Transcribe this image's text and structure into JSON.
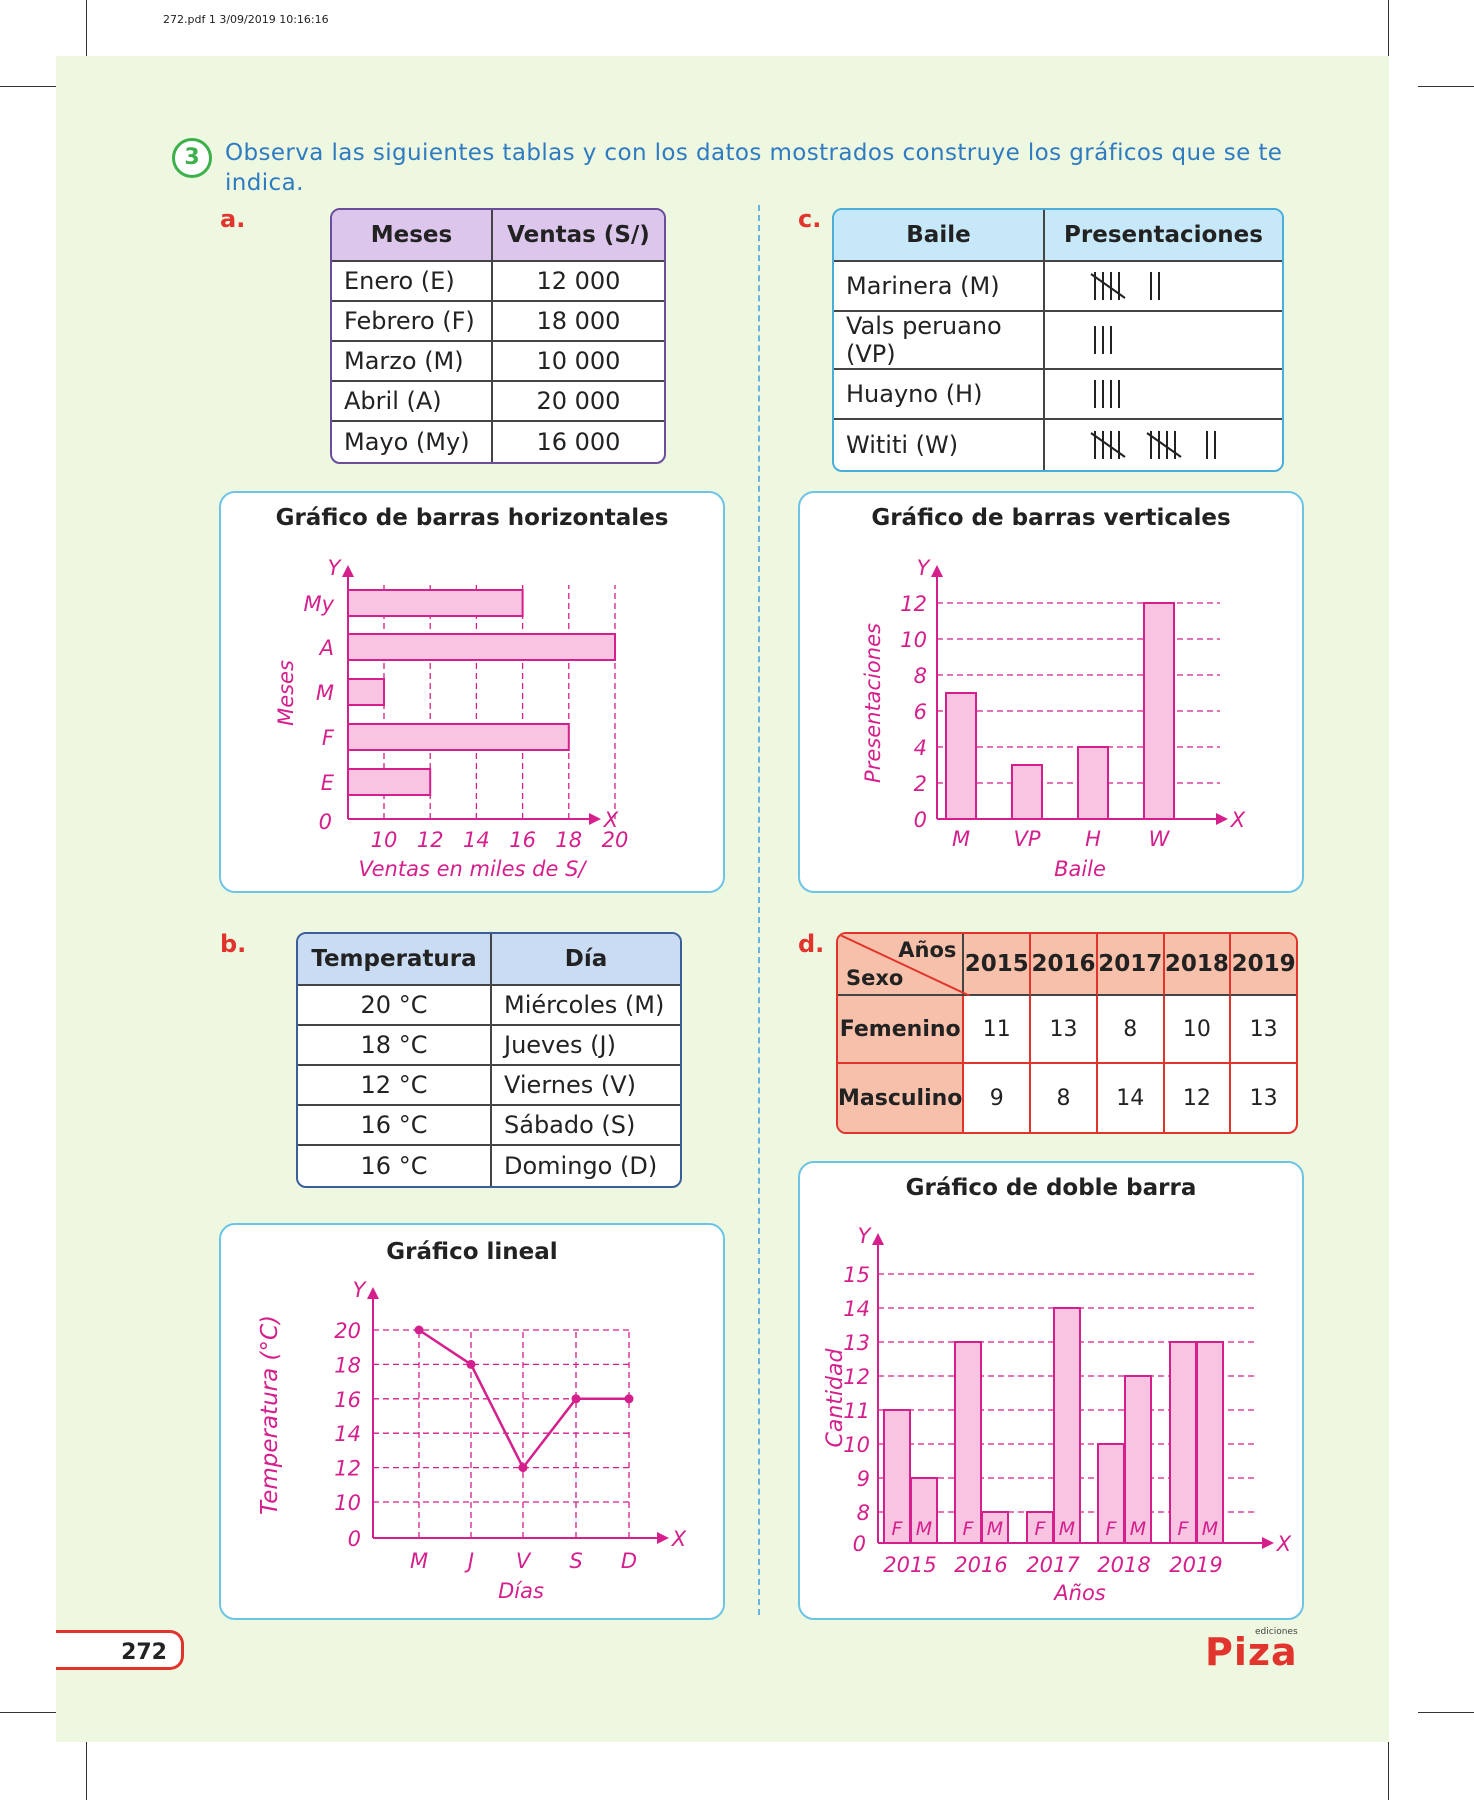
{
  "file_header": "272.pdf   1   3/09/2019   10:16:16",
  "exercise": {
    "number": "3",
    "instruction": "Observa las siguientes tablas y con los datos mostrados construye los gráficos que se te indica."
  },
  "letters": {
    "a": "a.",
    "b": "b.",
    "c": "c.",
    "d": "d."
  },
  "table_a": {
    "headers": [
      "Meses",
      "Ventas (S/)"
    ],
    "rows": [
      [
        "Enero (E)",
        "12 000"
      ],
      [
        "Febrero (F)",
        "18 000"
      ],
      [
        "Marzo (M)",
        "10 000"
      ],
      [
        "Abril (A)",
        "20 000"
      ],
      [
        "Mayo (My)",
        "16 000"
      ]
    ],
    "header_color": "#dcc6ec",
    "border_color": "#6a4e9c"
  },
  "table_b": {
    "headers": [
      "Temperatura",
      "Día"
    ],
    "rows": [
      [
        "20 °C",
        "Miércoles (M)"
      ],
      [
        "18 °C",
        "Jueves (J)"
      ],
      [
        "12 °C",
        "Viernes (V)"
      ],
      [
        "16 °C",
        "Sábado (S)"
      ],
      [
        "16 °C",
        "Domingo (D)"
      ]
    ],
    "header_color": "#c9dcf4",
    "border_color": "#3a5e9c"
  },
  "table_c": {
    "headers": [
      "Baile",
      "Presentaciones"
    ],
    "rows": [
      [
        "Marinera (M)",
        7
      ],
      [
        "Vals peruano (VP)",
        3
      ],
      [
        "Huayno (H)",
        4
      ],
      [
        "Wititi (W)",
        12
      ]
    ],
    "header_color": "#c7e8f8",
    "border_color": "#4aaedc"
  },
  "table_d": {
    "corner_top": "Años",
    "corner_bottom": "Sexo",
    "years": [
      "2015",
      "2016",
      "2017",
      "2018",
      "2019"
    ],
    "rows": [
      {
        "label": "Femenino",
        "values": [
          "11",
          "13",
          "8",
          "10",
          "13"
        ]
      },
      {
        "label": "Masculino",
        "values": [
          "9",
          "8",
          "14",
          "12",
          "13"
        ]
      }
    ],
    "header_color": "#f7c0aa",
    "border_color": "#e0342c"
  },
  "chart_data": [
    {
      "type": "bar",
      "orientation": "horizontal",
      "title": "Gráfico de barras horizontales",
      "xlabel": "Ventas en miles de S/",
      "ylabel": "Meses",
      "x_axis_name": "X",
      "y_axis_name": "Y",
      "categories": [
        "E",
        "F",
        "M",
        "A",
        "My"
      ],
      "values": [
        12,
        18,
        10,
        20,
        16
      ],
      "x_ticks": [
        "10",
        "12",
        "14",
        "16",
        "18",
        "20"
      ],
      "origin_label": "0",
      "xlim": [
        8,
        20
      ]
    },
    {
      "type": "bar",
      "orientation": "vertical",
      "title": "Gráfico de barras verticales",
      "xlabel": "Baile",
      "ylabel": "Presentaciones",
      "x_axis_name": "X",
      "y_axis_name": "Y",
      "categories": [
        "M",
        "VP",
        "H",
        "W"
      ],
      "values": [
        7,
        3,
        4,
        12
      ],
      "y_ticks": [
        "0",
        "2",
        "4",
        "6",
        "8",
        "10",
        "12"
      ],
      "ylim": [
        0,
        12
      ]
    },
    {
      "type": "line",
      "title": "Gráfico lineal",
      "xlabel": "Días",
      "ylabel": "Temperatura (°C)",
      "x_axis_name": "X",
      "y_axis_name": "Y",
      "categories": [
        "M",
        "J",
        "V",
        "S",
        "D"
      ],
      "values": [
        20,
        18,
        12,
        16,
        16
      ],
      "y_ticks": [
        "10",
        "12",
        "14",
        "16",
        "18",
        "20"
      ],
      "origin_label": "0",
      "ylim": [
        8,
        20
      ]
    },
    {
      "type": "bar",
      "orientation": "vertical",
      "grouped": true,
      "title": "Gráfico de doble barra",
      "xlabel": "Años",
      "ylabel": "Cantidad",
      "x_axis_name": "X",
      "y_axis_name": "Y",
      "categories": [
        "2015",
        "2016",
        "2017",
        "2018",
        "2019"
      ],
      "series": [
        {
          "name": "F",
          "values": [
            11,
            13,
            8,
            10,
            13
          ]
        },
        {
          "name": "M",
          "values": [
            9,
            8,
            14,
            12,
            13
          ]
        }
      ],
      "y_ticks": [
        "8",
        "9",
        "10",
        "11",
        "12",
        "13",
        "14",
        "15"
      ],
      "origin_label": "0",
      "ylim": [
        7,
        15
      ]
    }
  ],
  "colors": {
    "chart_ink": "#d41f8c",
    "bar_fill": "#f8c4e2",
    "chart_border": "#6cc4e6",
    "page_bg": "#eef7e0"
  },
  "footer": {
    "page_number": "272",
    "logo": "Piza",
    "logo_sub": "ediciones"
  }
}
